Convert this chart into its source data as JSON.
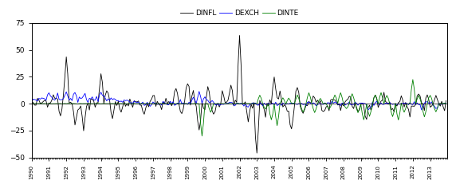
{
  "title": "",
  "legend_labels": [
    "DINFL",
    "DEXCH",
    "DINTE"
  ],
  "legend_colors": [
    "black",
    "blue",
    "green"
  ],
  "ylim": [
    -50,
    75
  ],
  "yticks": [
    -50,
    -25,
    0,
    25,
    50,
    75
  ],
  "xlabel": "",
  "ylabel": "",
  "background_color": "#ffffff",
  "line_width": 0.6,
  "figsize": [
    5.67,
    2.41
  ],
  "dpi": 100,
  "start_year": 1990,
  "end_year": 2013,
  "num_points": 288
}
